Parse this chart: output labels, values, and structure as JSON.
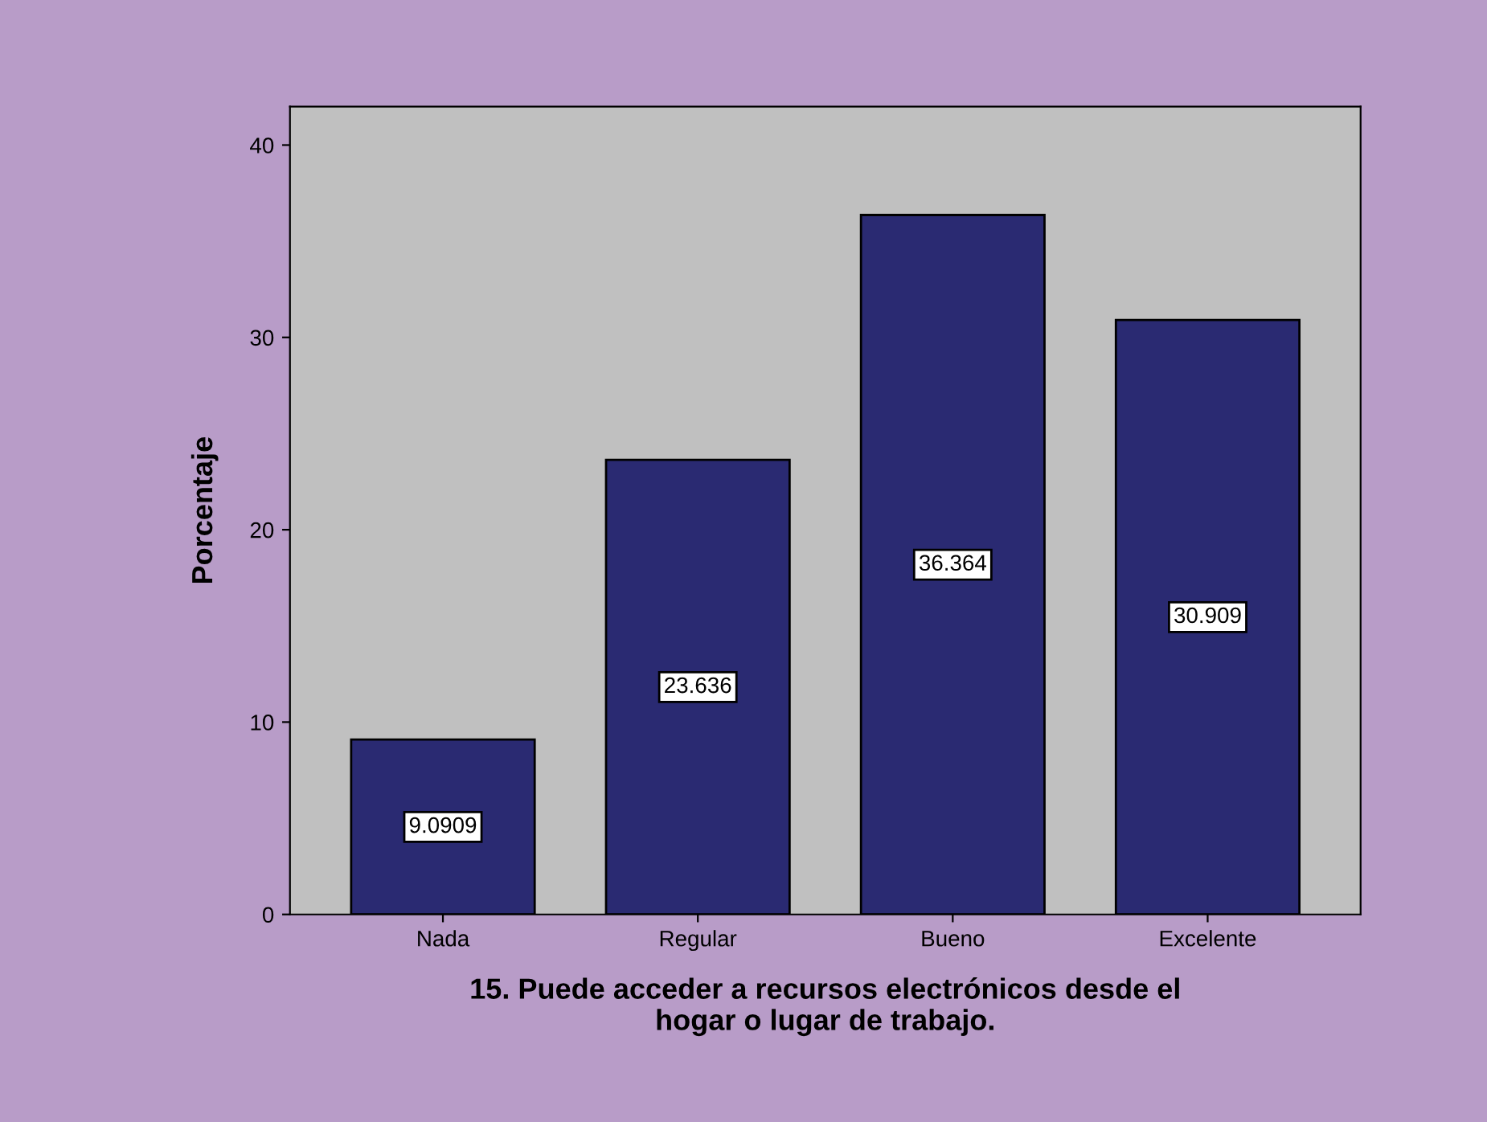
{
  "chart_data": {
    "type": "bar",
    "xlabel": "15. Puede acceder a recursos electrónicos desde el\nhogar o lugar de trabajo.",
    "ylabel": "Porcentaje",
    "categories": [
      "Nada",
      "Regular",
      "Bueno",
      "Excelente"
    ],
    "values": [
      9.0909,
      23.636,
      36.364,
      30.909
    ],
    "color": "#2a2a72",
    "data_labels": true,
    "ylim": [
      0,
      42
    ],
    "yticks": [
      0,
      10,
      20,
      30,
      40
    ],
    "grid": false,
    "legend": false
  }
}
